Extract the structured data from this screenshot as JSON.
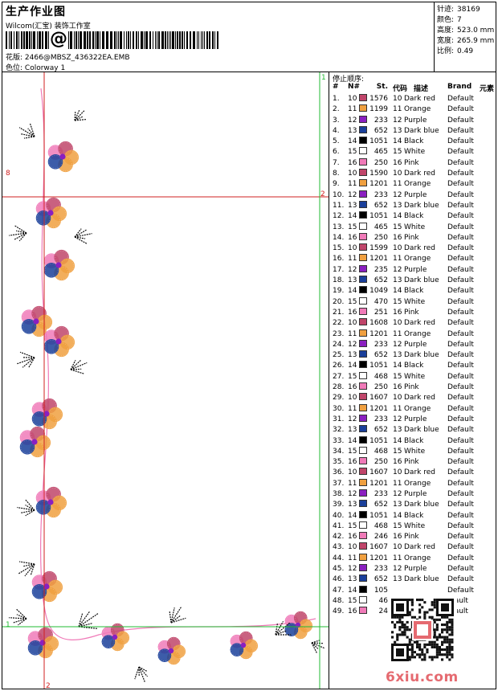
{
  "header": {
    "title": "生产作业图",
    "company": "Wilcom(汇宝) 装饰工作室",
    "barcode_symbol": "@",
    "design_label": "花版:",
    "design_value": "2466@MBSZ_436322EA.EMB",
    "color_label": "色位:",
    "color_value": "Colorway 1"
  },
  "stats": [
    {
      "label": "针迹:",
      "value": "38169"
    },
    {
      "label": "颜色:",
      "value": "7"
    },
    {
      "label": "高度:",
      "value": "523.0 mm"
    },
    {
      "label": "宽度:",
      "value": "265.9 mm"
    },
    {
      "label": "比例:",
      "value": "0.49"
    }
  ],
  "preview": {
    "markers": {
      "top_1": "1",
      "mid_2": "2",
      "left_8": "8",
      "bottom_1": "1",
      "bottom_2": "2"
    }
  },
  "sequence": {
    "title": "停止顺序:",
    "headers": {
      "num": "#",
      "n": "N#",
      "st": "St.",
      "code": "代码",
      "desc": "描述",
      "brand": "Brand",
      "elem": "元素"
    },
    "colors": {
      "Dark red": "#c0456a",
      "Orange": "#f0a040",
      "Purple": "#8a1fc0",
      "Dark blue": "#1a3f9a",
      "Black": "#000000",
      "White": "#ffffff",
      "Pink": "#f07ab8"
    },
    "rows": [
      {
        "num": "1.",
        "n": "10",
        "st": "1576",
        "code": "10",
        "desc": "Dark red",
        "brand": "Default"
      },
      {
        "num": "2.",
        "n": "11",
        "st": "1199",
        "code": "11",
        "desc": "Orange",
        "brand": "Default"
      },
      {
        "num": "3.",
        "n": "12",
        "st": "233",
        "code": "12",
        "desc": "Purple",
        "brand": "Default"
      },
      {
        "num": "4.",
        "n": "13",
        "st": "652",
        "code": "13",
        "desc": "Dark blue",
        "brand": "Default"
      },
      {
        "num": "5.",
        "n": "14",
        "st": "1051",
        "code": "14",
        "desc": "Black",
        "brand": "Default"
      },
      {
        "num": "6.",
        "n": "15",
        "st": "465",
        "code": "15",
        "desc": "White",
        "brand": "Default"
      },
      {
        "num": "7.",
        "n": "16",
        "st": "250",
        "code": "16",
        "desc": "Pink",
        "brand": "Default"
      },
      {
        "num": "8.",
        "n": "10",
        "st": "1590",
        "code": "10",
        "desc": "Dark red",
        "brand": "Default"
      },
      {
        "num": "9.",
        "n": "11",
        "st": "1201",
        "code": "11",
        "desc": "Orange",
        "brand": "Default"
      },
      {
        "num": "10.",
        "n": "12",
        "st": "233",
        "code": "12",
        "desc": "Purple",
        "brand": "Default"
      },
      {
        "num": "11.",
        "n": "13",
        "st": "652",
        "code": "13",
        "desc": "Dark blue",
        "brand": "Default"
      },
      {
        "num": "12.",
        "n": "14",
        "st": "1051",
        "code": "14",
        "desc": "Black",
        "brand": "Default"
      },
      {
        "num": "13.",
        "n": "15",
        "st": "465",
        "code": "15",
        "desc": "White",
        "brand": "Default"
      },
      {
        "num": "14.",
        "n": "16",
        "st": "250",
        "code": "16",
        "desc": "Pink",
        "brand": "Default"
      },
      {
        "num": "15.",
        "n": "10",
        "st": "1599",
        "code": "10",
        "desc": "Dark red",
        "brand": "Default"
      },
      {
        "num": "16.",
        "n": "11",
        "st": "1201",
        "code": "11",
        "desc": "Orange",
        "brand": "Default"
      },
      {
        "num": "17.",
        "n": "12",
        "st": "235",
        "code": "12",
        "desc": "Purple",
        "brand": "Default"
      },
      {
        "num": "18.",
        "n": "13",
        "st": "652",
        "code": "13",
        "desc": "Dark blue",
        "brand": "Default"
      },
      {
        "num": "19.",
        "n": "14",
        "st": "1049",
        "code": "14",
        "desc": "Black",
        "brand": "Default"
      },
      {
        "num": "20.",
        "n": "15",
        "st": "470",
        "code": "15",
        "desc": "White",
        "brand": "Default"
      },
      {
        "num": "21.",
        "n": "16",
        "st": "251",
        "code": "16",
        "desc": "Pink",
        "brand": "Default"
      },
      {
        "num": "22.",
        "n": "10",
        "st": "1608",
        "code": "10",
        "desc": "Dark red",
        "brand": "Default"
      },
      {
        "num": "23.",
        "n": "11",
        "st": "1201",
        "code": "11",
        "desc": "Orange",
        "brand": "Default"
      },
      {
        "num": "24.",
        "n": "12",
        "st": "233",
        "code": "12",
        "desc": "Purple",
        "brand": "Default"
      },
      {
        "num": "25.",
        "n": "13",
        "st": "652",
        "code": "13",
        "desc": "Dark blue",
        "brand": "Default"
      },
      {
        "num": "26.",
        "n": "14",
        "st": "1051",
        "code": "14",
        "desc": "Black",
        "brand": "Default"
      },
      {
        "num": "27.",
        "n": "15",
        "st": "468",
        "code": "15",
        "desc": "White",
        "brand": "Default"
      },
      {
        "num": "28.",
        "n": "16",
        "st": "250",
        "code": "16",
        "desc": "Pink",
        "brand": "Default"
      },
      {
        "num": "29.",
        "n": "10",
        "st": "1607",
        "code": "10",
        "desc": "Dark red",
        "brand": "Default"
      },
      {
        "num": "30.",
        "n": "11",
        "st": "1201",
        "code": "11",
        "desc": "Orange",
        "brand": "Default"
      },
      {
        "num": "31.",
        "n": "12",
        "st": "233",
        "code": "12",
        "desc": "Purple",
        "brand": "Default"
      },
      {
        "num": "32.",
        "n": "13",
        "st": "652",
        "code": "13",
        "desc": "Dark blue",
        "brand": "Default"
      },
      {
        "num": "33.",
        "n": "14",
        "st": "1051",
        "code": "14",
        "desc": "Black",
        "brand": "Default"
      },
      {
        "num": "34.",
        "n": "15",
        "st": "468",
        "code": "15",
        "desc": "White",
        "brand": "Default"
      },
      {
        "num": "35.",
        "n": "16",
        "st": "250",
        "code": "16",
        "desc": "Pink",
        "brand": "Default"
      },
      {
        "num": "36.",
        "n": "10",
        "st": "1607",
        "code": "10",
        "desc": "Dark red",
        "brand": "Default"
      },
      {
        "num": "37.",
        "n": "11",
        "st": "1201",
        "code": "11",
        "desc": "Orange",
        "brand": "Default"
      },
      {
        "num": "38.",
        "n": "12",
        "st": "233",
        "code": "12",
        "desc": "Purple",
        "brand": "Default"
      },
      {
        "num": "39.",
        "n": "13",
        "st": "652",
        "code": "13",
        "desc": "Dark blue",
        "brand": "Default"
      },
      {
        "num": "40.",
        "n": "14",
        "st": "1051",
        "code": "14",
        "desc": "Black",
        "brand": "Default"
      },
      {
        "num": "41.",
        "n": "15",
        "st": "468",
        "code": "15",
        "desc": "White",
        "brand": "Default"
      },
      {
        "num": "42.",
        "n": "16",
        "st": "246",
        "code": "16",
        "desc": "Pink",
        "brand": "Default"
      },
      {
        "num": "43.",
        "n": "10",
        "st": "1607",
        "code": "10",
        "desc": "Dark red",
        "brand": "Default"
      },
      {
        "num": "44.",
        "n": "11",
        "st": "1201",
        "code": "11",
        "desc": "Orange",
        "brand": "Default"
      },
      {
        "num": "45.",
        "n": "12",
        "st": "233",
        "code": "12",
        "desc": "Purple",
        "brand": "Default"
      },
      {
        "num": "46.",
        "n": "13",
        "st": "652",
        "code": "13",
        "desc": "Dark blue",
        "brand": "Default"
      },
      {
        "num": "47.",
        "n": "14",
        "st": "105",
        "code": "",
        "desc": "",
        "brand": "Default"
      },
      {
        "num": "48.",
        "n": "15",
        "st": "46",
        "code": "",
        "desc": "",
        "brand": "efault"
      },
      {
        "num": "49.",
        "n": "16",
        "st": "24",
        "code": "",
        "desc": "",
        "brand": "efault"
      }
    ]
  },
  "watermark": "6xiu.com"
}
